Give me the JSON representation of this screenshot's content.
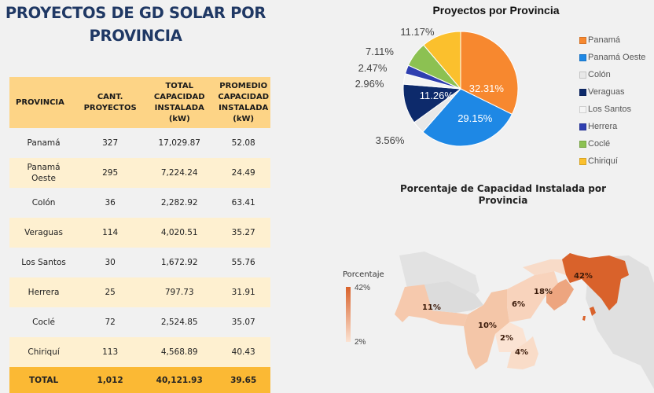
{
  "page_title": [
    "PROYECTOS DE GD SOLAR POR",
    "PROVINCIA"
  ],
  "table": {
    "headers": [
      "PROVINCIA",
      "CANT.\nPROYECTOS",
      "TOTAL\nCAPACIDAD\nINSTALADA\n(kW)",
      "PROMEDIO\nCAPACIDAD\nINSTALADA\n(kW)"
    ],
    "rows": [
      [
        "Panamá",
        "327",
        "17,029.87",
        "52.08"
      ],
      [
        "Panamá\nOeste",
        "295",
        "7,224.24",
        "24.49"
      ],
      [
        "Colón",
        "36",
        "2,282.92",
        "63.41"
      ],
      [
        "Veraguas",
        "114",
        "4,020.51",
        "35.27"
      ],
      [
        "Los Santos",
        "30",
        "1,672.92",
        "55.76"
      ],
      [
        "Herrera",
        "25",
        "797.73",
        "31.91"
      ],
      [
        "Coclé",
        "72",
        "2,524.85",
        "35.07"
      ],
      [
        "Chiriquí",
        "113",
        "4,568.89",
        "40.43"
      ]
    ],
    "total": [
      "TOTAL",
      "1,012",
      "40,121.93",
      "39.65"
    ]
  },
  "chart_data": [
    {
      "type": "pie",
      "title": "Proyectos por Provincia",
      "legend_position": "right",
      "categories": [
        "Panamá",
        "Panamá Oeste",
        "Colón",
        "Veraguas",
        "Los Santos",
        "Herrera",
        "Coclé",
        "Chiriquí"
      ],
      "values": [
        32.31,
        29.15,
        3.56,
        11.26,
        2.96,
        2.47,
        7.11,
        11.17
      ],
      "labels": [
        "32.31%",
        "29.15%",
        "3.56%",
        "11.26%",
        "2.96%",
        "2.47%",
        "7.11%",
        "11.17%"
      ],
      "colors": [
        "#f7882f",
        "#1e88e5",
        "#e8e8e8",
        "#0d2a6b",
        "#f4f4f4",
        "#2f3fb0",
        "#8cc152",
        "#fbc02d"
      ]
    },
    {
      "type": "heatmap",
      "title": "Porcentaje de Capacidad Instalada por Provincia",
      "legend_title": "Porcentaje",
      "scale_max": "42%",
      "scale_min": "2%",
      "regions": [
        {
          "name": "Panamá",
          "value": 42,
          "label": "42%"
        },
        {
          "name": "Panamá Oeste",
          "value": 18,
          "label": "18%"
        },
        {
          "name": "Chiriquí",
          "value": 11,
          "label": "11%"
        },
        {
          "name": "Veraguas",
          "value": 10,
          "label": "10%"
        },
        {
          "name": "Coclé",
          "value": 6,
          "label": "6%"
        },
        {
          "name": "Los Santos",
          "value": 4,
          "label": "4%"
        },
        {
          "name": "Herrera",
          "value": 2,
          "label": "2%"
        }
      ]
    }
  ]
}
